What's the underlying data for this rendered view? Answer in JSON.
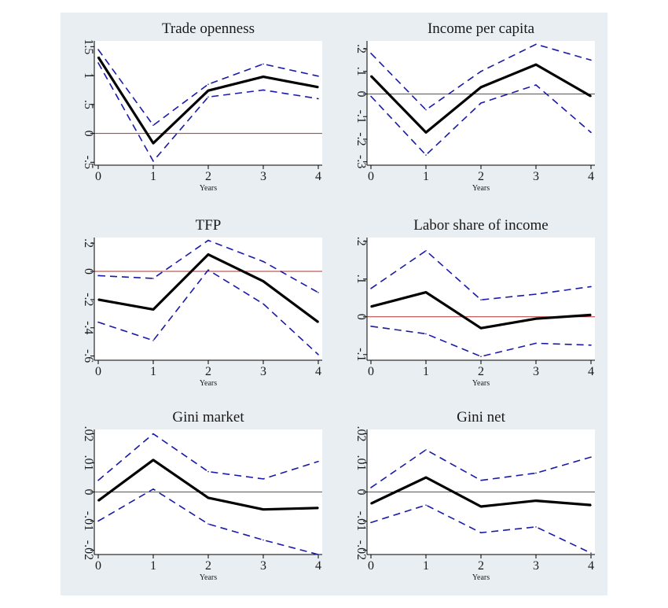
{
  "colors": {
    "background": "#e8eef2",
    "plot_area": "#ffffff",
    "estimate_line": "#000000",
    "band_line": "#1a1aa8",
    "zero_line": "#b03030"
  },
  "chart_data": [
    {
      "type": "line",
      "title": "Trade openness",
      "xlabel": "Years",
      "x": [
        0,
        1,
        2,
        3,
        4
      ],
      "ylim": [
        -0.55,
        1.6
      ],
      "yticks": [
        -0.5,
        0,
        0.5,
        1,
        1.5
      ],
      "ytick_labels": [
        "-.5",
        "0",
        ".5",
        "1",
        "1.5"
      ],
      "series": [
        {
          "role": "estimate",
          "values": [
            1.32,
            -0.17,
            0.74,
            0.98,
            0.8
          ]
        },
        {
          "role": "upper",
          "values": [
            1.45,
            0.14,
            0.85,
            1.2,
            0.99
          ]
        },
        {
          "role": "lower",
          "values": [
            1.22,
            -0.48,
            0.63,
            0.75,
            0.6
          ]
        }
      ],
      "reference_line": 0
    },
    {
      "type": "line",
      "title": "Income per capita",
      "xlabel": "Years",
      "x": [
        0,
        1,
        2,
        3,
        4
      ],
      "ylim": [
        -0.315,
        0.235
      ],
      "yticks": [
        -0.3,
        -0.2,
        -0.1,
        0,
        0.1,
        0.2
      ],
      "ytick_labels": [
        "-.3",
        "-.2",
        "-.1",
        "0",
        ".1",
        ".2"
      ],
      "series": [
        {
          "role": "estimate",
          "values": [
            0.08,
            -0.17,
            0.03,
            0.13,
            -0.01
          ]
        },
        {
          "role": "upper",
          "values": [
            0.18,
            -0.07,
            0.1,
            0.22,
            0.15
          ]
        },
        {
          "role": "lower",
          "values": [
            -0.01,
            -0.27,
            -0.04,
            0.04,
            -0.17
          ]
        }
      ],
      "reference_line": 0
    },
    {
      "type": "line",
      "title": "TFP",
      "xlabel": "Years",
      "x": [
        0,
        1,
        2,
        3,
        4
      ],
      "ylim": [
        -0.63,
        0.24
      ],
      "yticks": [
        -0.6,
        -0.4,
        -0.2,
        0,
        0.2
      ],
      "ytick_labels": [
        "-.6",
        "-.4",
        "-.2",
        "0",
        ".2"
      ],
      "series": [
        {
          "role": "estimate",
          "values": [
            -0.2,
            -0.27,
            0.12,
            -0.07,
            -0.36
          ]
        },
        {
          "role": "upper",
          "values": [
            -0.03,
            -0.05,
            0.22,
            0.07,
            -0.15
          ]
        },
        {
          "role": "lower",
          "values": [
            -0.36,
            -0.49,
            0.01,
            -0.23,
            -0.59
          ]
        }
      ],
      "reference_line": 0
    },
    {
      "type": "line",
      "title": "Labor share of income",
      "xlabel": "Years",
      "x": [
        0,
        1,
        2,
        3,
        4
      ],
      "ylim": [
        -0.115,
        0.21
      ],
      "yticks": [
        -0.1,
        0,
        0.1,
        0.2
      ],
      "ytick_labels": [
        "-.1",
        "0",
        ".1",
        ".2"
      ],
      "series": [
        {
          "role": "estimate",
          "values": [
            0.027,
            0.065,
            -0.03,
            -0.005,
            0.005
          ]
        },
        {
          "role": "upper",
          "values": [
            0.075,
            0.175,
            0.045,
            0.06,
            0.08
          ]
        },
        {
          "role": "lower",
          "values": [
            -0.025,
            -0.045,
            -0.105,
            -0.07,
            -0.075
          ]
        }
      ],
      "reference_line": 0
    },
    {
      "type": "line",
      "title": "Gini market",
      "xlabel": "Years",
      "x": [
        0,
        1,
        2,
        3,
        4
      ],
      "ylim": [
        -0.0215,
        0.0215
      ],
      "yticks": [
        -0.02,
        -0.01,
        0,
        0.01,
        0.02
      ],
      "ytick_labels": [
        "-.02",
        "-.01",
        "0",
        ".01",
        ".02"
      ],
      "series": [
        {
          "role": "estimate",
          "values": [
            -0.003,
            0.011,
            -0.002,
            -0.006,
            -0.0055
          ]
        },
        {
          "role": "upper",
          "values": [
            0.004,
            0.02,
            0.007,
            0.0045,
            0.0105
          ]
        },
        {
          "role": "lower",
          "values": [
            -0.01,
            0.001,
            -0.011,
            -0.0165,
            -0.0215
          ]
        }
      ],
      "reference_line": 0
    },
    {
      "type": "line",
      "title": "Gini net",
      "xlabel": "Years",
      "x": [
        0,
        1,
        2,
        3,
        4
      ],
      "ylim": [
        -0.0215,
        0.0215
      ],
      "yticks": [
        -0.02,
        -0.01,
        0,
        0.01,
        0.02
      ],
      "ytick_labels": [
        "-.02",
        "-.01",
        "0",
        ".01",
        ".02"
      ],
      "series": [
        {
          "role": "estimate",
          "values": [
            -0.004,
            0.005,
            -0.005,
            -0.003,
            -0.0045
          ]
        },
        {
          "role": "upper",
          "values": [
            0.0015,
            0.0145,
            0.004,
            0.0065,
            0.012
          ]
        },
        {
          "role": "lower",
          "values": [
            -0.0105,
            -0.0045,
            -0.014,
            -0.012,
            -0.021
          ]
        }
      ],
      "reference_line": 0
    }
  ]
}
